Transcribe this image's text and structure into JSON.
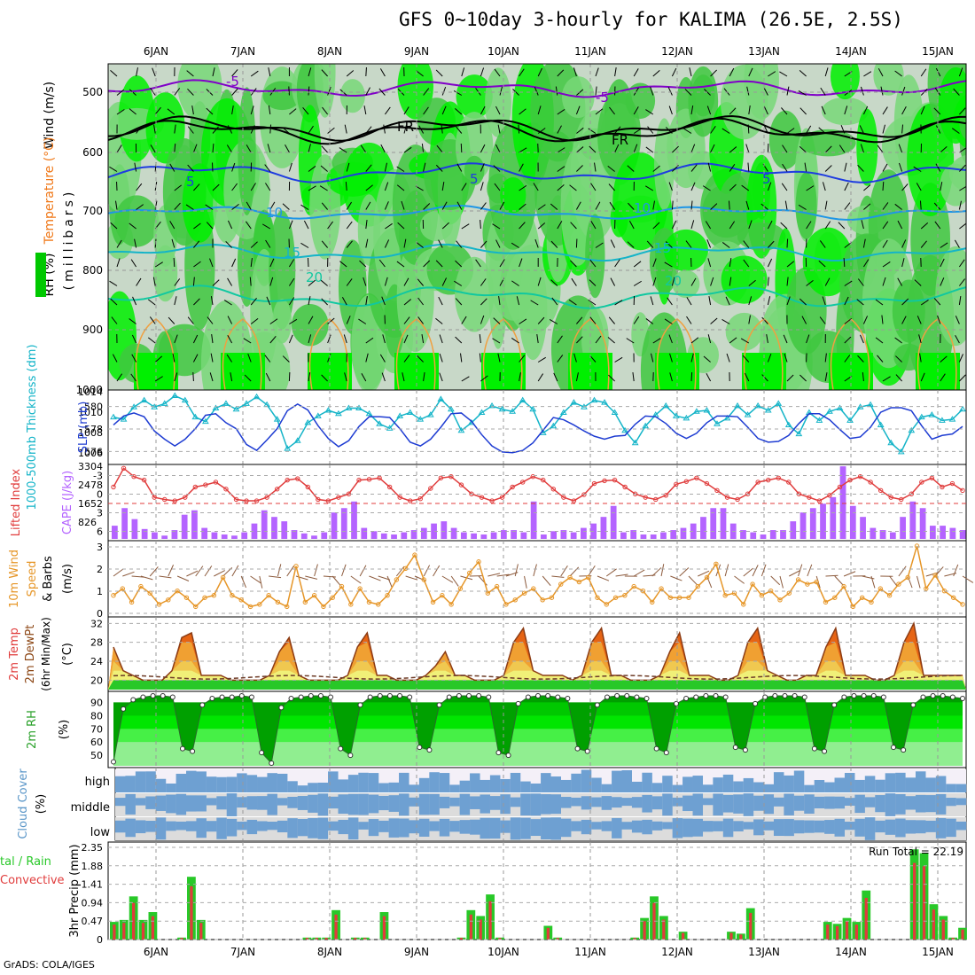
{
  "title": "GFS 0~10day 3-hourly for KALIMA (26.5E, 2.5S)",
  "footer": "GrADS: COLA/IGES",
  "dates": [
    "6JAN",
    "7JAN",
    "8JAN",
    "9JAN",
    "10JAN",
    "11JAN",
    "12JAN",
    "13JAN",
    "14JAN",
    "15JAN"
  ],
  "colors": {
    "rh_light": "#c8d8c8",
    "rh_mid": "#78d878",
    "rh_green": "#40c840",
    "rh_bright": "#00f000",
    "rh_dark": "#00a000",
    "temp_neg5": "#8000c8",
    "temp_fr": "#000000",
    "temp_5": "#1e3ce0",
    "temp_10": "#1e96e6",
    "temp_15": "#14b4c8",
    "temp_20": "#10c8a0",
    "thickness": "#14b4c8",
    "slp": "#1e3cd2",
    "lifted_index": "#e03c3c",
    "cape": "#b464ff",
    "wind10m": "#e69628",
    "barb": "#000000",
    "rh2m": [
      "#00a000",
      "#00c800",
      "#00e600",
      "#46f046",
      "#90ee90"
    ],
    "cloud_blue": "#6ea0d2",
    "cloud_high_bg": "#f4f0f8",
    "cloud_grey": "#dcdcdc",
    "precip_total": "#28c828",
    "precip_conv": "#e03c3c"
  },
  "panels": {
    "upper_air": {
      "ylabels": [
        "Wind (m/s)",
        "Temperature (°C)",
        "RH (%)",
        "(millibars)"
      ],
      "yticks": [
        "500",
        "600",
        "700",
        "800",
        "900",
        "1000"
      ],
      "contour_labels": [
        "-5",
        "FR",
        "FR",
        "-5",
        "5",
        "5",
        "5",
        "10",
        "10",
        "15",
        "15",
        "20",
        "20"
      ]
    },
    "thickness_slp": {
      "left_label": "1000-500mb Thickness (dm)",
      "right_label": "SLP (mb)",
      "left_ticks": [
        "580",
        "578",
        "576"
      ],
      "right_ticks": [
        "1014",
        "1010",
        "1008",
        "1006"
      ]
    },
    "li_cape": {
      "left_label": "Lifted Index",
      "right_label": "CAPE (J/kg)",
      "left_ticks": [
        "-3",
        "0",
        "3",
        "6"
      ],
      "right_ticks": [
        "3304",
        "2478",
        "1652",
        "826"
      ]
    },
    "wind10m": {
      "label_top": "10m Wind",
      "label_mid": "Speed",
      "label_bot": "& Barbs",
      "units": "(m/s)",
      "ticks": [
        "0",
        "1",
        "2",
        "3"
      ]
    },
    "temp2m": {
      "l1": "2m Temp",
      "l2": "2m DewPt",
      "l3": "(6hr Min/Max)",
      "units": "(°C)",
      "ticks": [
        "20",
        "24",
        "28",
        "32"
      ]
    },
    "rh2m": {
      "label": "2m RH",
      "units": "(%)",
      "ticks": [
        "50",
        "60",
        "70",
        "80",
        "90"
      ]
    },
    "cloud": {
      "label": "Cloud Cover",
      "units": "(%)",
      "levels": [
        "high",
        "middle",
        "low"
      ]
    },
    "precip": {
      "label": "3hr Precip (mm)",
      "left1": "tal / Rain",
      "left2": "Convective",
      "ticks": [
        "0",
        "0.47",
        "0.94",
        "1.41",
        "1.88",
        "2.35"
      ],
      "run_total": "Run Total = 22.19"
    }
  },
  "chart_data": [
    {
      "type": "line",
      "name": "1000-500mb Thickness (dm)",
      "ylim": [
        575.5,
        581.5
      ],
      "values": [
        579.4,
        579.2,
        580.3,
        580.9,
        580.3,
        580.6,
        581.3,
        580.9,
        579.4,
        579.0,
        580.2,
        580.6,
        580.1,
        580.6,
        581.2,
        580.5,
        579.2,
        576.6,
        577.3,
        578.9,
        579.5,
        580.0,
        579.7,
        580.2,
        580.2,
        579.7,
        578.8,
        578.4,
        579.5,
        579.8,
        579.2,
        579.6,
        581.0,
        580.1,
        578.2,
        578.9,
        579.8,
        580.4,
        580.1,
        579.9,
        580.9,
        580.1,
        578.0,
        578.6,
        579.8,
        580.7,
        580.3,
        580.9,
        580.7,
        579.8,
        578.2,
        577.1,
        578.6,
        579.6,
        580.4,
        579.5,
        579.3,
        579.9,
        580.0,
        578.8,
        579.3,
        580.4,
        579.6,
        580.4,
        580.0,
        580.6,
        578.7,
        577.9,
        579.8,
        579.1,
        579.9,
        580.2,
        579.1,
        580.3,
        580.5,
        578.7,
        577.1,
        576.3,
        578.2,
        579.4,
        579.6,
        579.1,
        579.2,
        580.1
      ]
    },
    {
      "type": "line",
      "name": "SLP (mb)",
      "ylim": [
        1005.5,
        1014.5
      ],
      "values": [
        1010.3,
        1011.5,
        1011.9,
        1011.4,
        1009.5,
        1008.4,
        1007.5,
        1008.4,
        1009.8,
        1011.6,
        1011.8,
        1010.6,
        1009.8,
        1007.7,
        1006.9,
        1008.3,
        1009.8,
        1012.2,
        1013.1,
        1012.3,
        1010.2,
        1008.5,
        1007.4,
        1008.2,
        1010.1,
        1011.4,
        1011.4,
        1011.3,
        1009.8,
        1008.0,
        1007.5,
        1008.4,
        1010.0,
        1011.8,
        1011.9,
        1010.8,
        1009.0,
        1007.5,
        1006.7,
        1006.6,
        1006.9,
        1007.9,
        1009.6,
        1011.3,
        1011.0,
        1010.3,
        1009.5,
        1008.8,
        1008.4,
        1008.8,
        1008.9,
        1010.4,
        1011.5,
        1011.4,
        1010.5,
        1009.2,
        1008.5,
        1009.2,
        1010.6,
        1011.5,
        1011.5,
        1011.4,
        1010.0,
        1008.5,
        1008.0,
        1008.1,
        1008.9,
        1010.5,
        1011.8,
        1011.8,
        1011.0,
        1009.7,
        1008.5,
        1008.7,
        1010.0,
        1012.0,
        1012.6,
        1012.6,
        1012.2,
        1010.2,
        1008.4,
        1008.9,
        1009.1,
        1010.1
      ]
    },
    {
      "type": "line",
      "name": "Lifted Index",
      "ylim": [
        -4.5,
        6
      ],
      "values": [
        -1.5,
        -4.2,
        -3.0,
        -2.5,
        0.0,
        0.3,
        0.5,
        0.0,
        -1.5,
        -1.8,
        -2.2,
        -1.2,
        0.3,
        0.5,
        0.5,
        0.0,
        -1.2,
        -2.5,
        -2.7,
        -1.5,
        0.3,
        0.5,
        0.0,
        -0.5,
        -2.5,
        -2.6,
        -2.8,
        -1.5,
        0.0,
        0.5,
        0.2,
        -1.3,
        -2.8,
        -3.0,
        -1.8,
        -0.5,
        0.0,
        0.5,
        0.0,
        -1.5,
        -2.2,
        -3.0,
        -2.5,
        -1.2,
        0.0,
        0.5,
        -0.4,
        -2.0,
        -2.4,
        -2.5,
        -1.5,
        -0.5,
        0.0,
        0.3,
        -0.3,
        -1.9,
        -2.3,
        -2.8,
        -2.0,
        -1.0,
        0.0,
        0.3,
        -0.5,
        -2.2,
        -2.5,
        -2.8,
        -2.2,
        -0.5,
        0.0,
        0.5,
        -0.3,
        -1.5,
        -2.5,
        -3.0,
        -2.2,
        -1.0,
        0.0,
        0.3,
        -0.5,
        -2.2,
        -2.8,
        -1.5,
        -2.0,
        -1.0
      ]
    },
    {
      "type": "bar",
      "name": "CAPE (J/kg)",
      "ylim": [
        0,
        3304
      ],
      "values": [
        600,
        1400,
        900,
        450,
        300,
        150,
        400,
        1100,
        1300,
        500,
        300,
        200,
        150,
        300,
        700,
        1300,
        1000,
        800,
        400,
        250,
        150,
        300,
        1200,
        1400,
        1700,
        500,
        350,
        250,
        200,
        300,
        400,
        500,
        700,
        800,
        500,
        300,
        250,
        200,
        300,
        400,
        400,
        300,
        1700,
        200,
        350,
        400,
        300,
        500,
        700,
        1000,
        1500,
        300,
        400,
        200,
        200,
        300,
        400,
        500,
        700,
        1000,
        1400,
        1400,
        700,
        400,
        300,
        200,
        400,
        400,
        800,
        1200,
        1400,
        1600,
        1900,
        3300,
        1500,
        1000,
        500,
        400,
        300,
        1000,
        1700,
        1400,
        600,
        600,
        500,
        400
      ]
    },
    {
      "type": "line",
      "name": "10m Wind Speed (m/s)",
      "ylim": [
        0,
        3
      ],
      "values": [
        0.8,
        1.1,
        0.5,
        1.2,
        0.9,
        0.4,
        0.6,
        1.0,
        0.7,
        0.3,
        0.7,
        0.8,
        1.6,
        0.8,
        0.6,
        0.3,
        0.4,
        0.8,
        0.5,
        0.3,
        2.1,
        0.5,
        0.8,
        0.3,
        0.7,
        1.2,
        0.4,
        1.1,
        0.5,
        0.4,
        0.8,
        1.5,
        2.0,
        2.6,
        1.5,
        0.5,
        0.8,
        0.4,
        1.1,
        1.8,
        2.3,
        0.9,
        1.2,
        0.4,
        0.6,
        0.9,
        1.1,
        0.6,
        0.7,
        1.3,
        1.6,
        1.4,
        1.6,
        0.7,
        0.4,
        0.7,
        0.8,
        1.2,
        1.0,
        0.5,
        1.1,
        0.7,
        0.7,
        0.7,
        1.2,
        1.6,
        2.2,
        0.8,
        0.9,
        0.4,
        1.3,
        0.8,
        1.0,
        0.6,
        0.9,
        1.5,
        1.3,
        1.4,
        0.5,
        0.7,
        1.2,
        0.3,
        0.7,
        0.5,
        1.1,
        0.8,
        1.3,
        1.6,
        3.0,
        1.1,
        1.7,
        1.0,
        0.7,
        0.4
      ]
    },
    {
      "type": "area",
      "name": "2m Temp (°C)",
      "ylim": [
        18,
        33
      ],
      "values": [
        27,
        22,
        21,
        20,
        20,
        20,
        22,
        29,
        30,
        21,
        21,
        21,
        20,
        20,
        20,
        20,
        21,
        26,
        29,
        21,
        20,
        20,
        20,
        20,
        21,
        27,
        30,
        21,
        21,
        20,
        20,
        20,
        21,
        23,
        26,
        21,
        21,
        20,
        20,
        20,
        21,
        28,
        31,
        22,
        21,
        21,
        21,
        20,
        21,
        28,
        31,
        21,
        21,
        20,
        20,
        20,
        21,
        26,
        30,
        21,
        21,
        21,
        20,
        20,
        21,
        28,
        31,
        22,
        21,
        20,
        20,
        21,
        21,
        27,
        31,
        21,
        21,
        21,
        20,
        20,
        21,
        28,
        32,
        21,
        21,
        21,
        21,
        21
      ]
    },
    {
      "type": "area",
      "name": "2m RH (%)",
      "ylim": [
        42,
        97
      ],
      "values": [
        45,
        85,
        92,
        94,
        95,
        95,
        94,
        55,
        53,
        88,
        93,
        94,
        94,
        95,
        94,
        52,
        44,
        86,
        93,
        94,
        95,
        95,
        94,
        55,
        50,
        88,
        94,
        95,
        95,
        95,
        94,
        56,
        54,
        88,
        94,
        95,
        95,
        95,
        94,
        52,
        50,
        89,
        94,
        95,
        95,
        94,
        93,
        55,
        53,
        88,
        94,
        95,
        95,
        94,
        93,
        55,
        52,
        89,
        93,
        94,
        95,
        95,
        94,
        56,
        54,
        89,
        94,
        95,
        95,
        95,
        94,
        55,
        53,
        88,
        94,
        95,
        95,
        95,
        94,
        56,
        54,
        88,
        94,
        95,
        95,
        94,
        93
      ]
    },
    {
      "type": "bar",
      "name": "3hr Precip Total (mm)",
      "ylim": [
        0,
        2.35
      ],
      "values": [
        0.45,
        0.5,
        1.1,
        0.5,
        0.7,
        0,
        0,
        0.05,
        1.6,
        0.5,
        0,
        0,
        0,
        0,
        0,
        0,
        0,
        0,
        0,
        0,
        0.05,
        0.05,
        0.05,
        0.75,
        0,
        0.05,
        0.05,
        0,
        0.7,
        0,
        0,
        0,
        0,
        0,
        0,
        0,
        0.05,
        0.75,
        0.6,
        1.15,
        0.05,
        0,
        0,
        0,
        0,
        0.35,
        0.05,
        0,
        0,
        0,
        0,
        0,
        0,
        0,
        0.05,
        0.55,
        1.1,
        0.6,
        0,
        0.2,
        0,
        0,
        0,
        0,
        0.2,
        0.15,
        0.8,
        0,
        0,
        0,
        0,
        0,
        0,
        0,
        0.45,
        0.4,
        0.55,
        0.45,
        1.25,
        0,
        0,
        0,
        0,
        2.3,
        2.2,
        0.9,
        0.6,
        0.05,
        0.3
      ]
    }
  ]
}
